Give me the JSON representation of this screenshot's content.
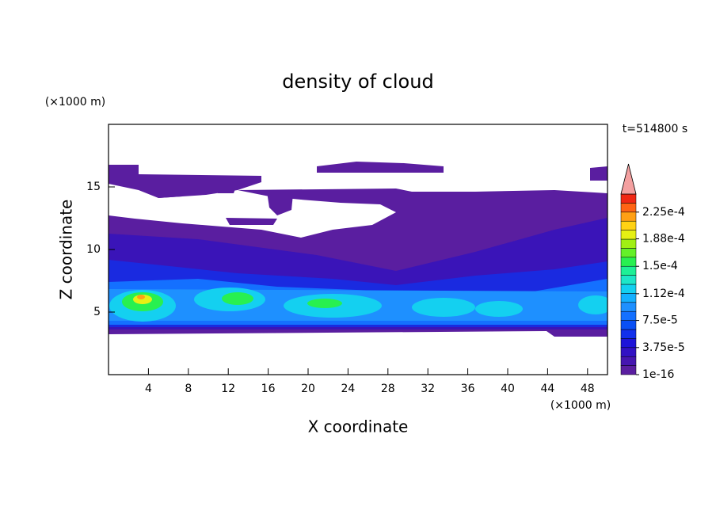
{
  "chart_data": {
    "type": "contour",
    "title": "density of cloud",
    "x_label": "X coordinate",
    "y_label": "Z coordinate",
    "x_unit": "(×1000 m)",
    "y_unit": "(×1000 m)",
    "time_label": "t=514800 s",
    "xlim": [
      0,
      50
    ],
    "xticks": [
      4,
      8,
      12,
      16,
      20,
      24,
      28,
      32,
      36,
      40,
      44,
      48
    ],
    "ylim": [
      0,
      20
    ],
    "yticks": [
      5,
      10,
      15
    ],
    "colorbar": {
      "lim": [
        1e-16,
        0.00025
      ],
      "ticks": [
        {
          "value": 1e-16,
          "label": "1e-16"
        },
        {
          "value": 3.75e-05,
          "label": "3.75e-5"
        },
        {
          "value": 7.5e-05,
          "label": "7.5e-5"
        },
        {
          "value": 0.000112,
          "label": "1.12e-4"
        },
        {
          "value": 0.00015,
          "label": "1.5e-4"
        },
        {
          "value": 0.000188,
          "label": "1.88e-4"
        },
        {
          "value": 0.000225,
          "label": "2.25e-4"
        }
      ],
      "colors": [
        "#5a1ea0",
        "#4616b0",
        "#3212c4",
        "#1e14d8",
        "#1230ec",
        "#0a50f5",
        "#1470ff",
        "#1e90ff",
        "#14b0ff",
        "#14d0f0",
        "#1ee6c8",
        "#1ef096",
        "#28f050",
        "#64f028",
        "#a0f014",
        "#e6f014",
        "#ffd214",
        "#ffa014",
        "#ff6414",
        "#f02814"
      ],
      "extend_color": "#f4a0a0"
    }
  }
}
